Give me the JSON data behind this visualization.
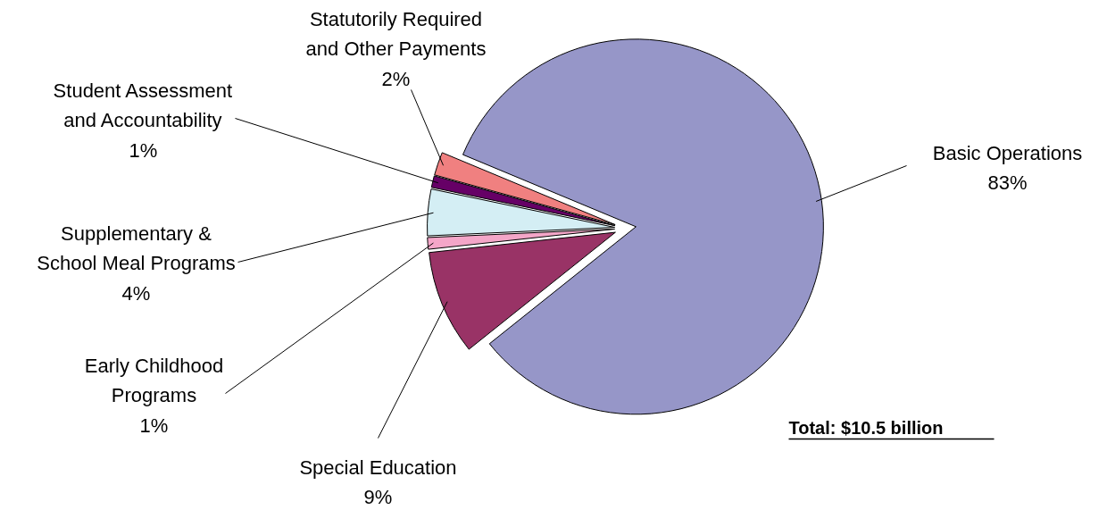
{
  "chart_data": {
    "type": "pie",
    "categories": [
      "Basic Operations",
      "Special Education",
      "Early Childhood Programs",
      "Supplementary & School Meal Programs",
      "Student Assessment and Accountability",
      "Statutorily Required and Other Payments"
    ],
    "values": [
      83,
      9,
      1,
      4,
      1,
      2
    ],
    "value_labels": [
      "83%",
      "9%",
      "1%",
      "4%",
      "1%",
      "2%"
    ],
    "colors": [
      "#9696c8",
      "#993366",
      "#f4a6c8",
      "#d4eef4",
      "#660066",
      "#f08080"
    ],
    "annotations": [
      "Total:  $10.5 billion"
    ]
  }
}
